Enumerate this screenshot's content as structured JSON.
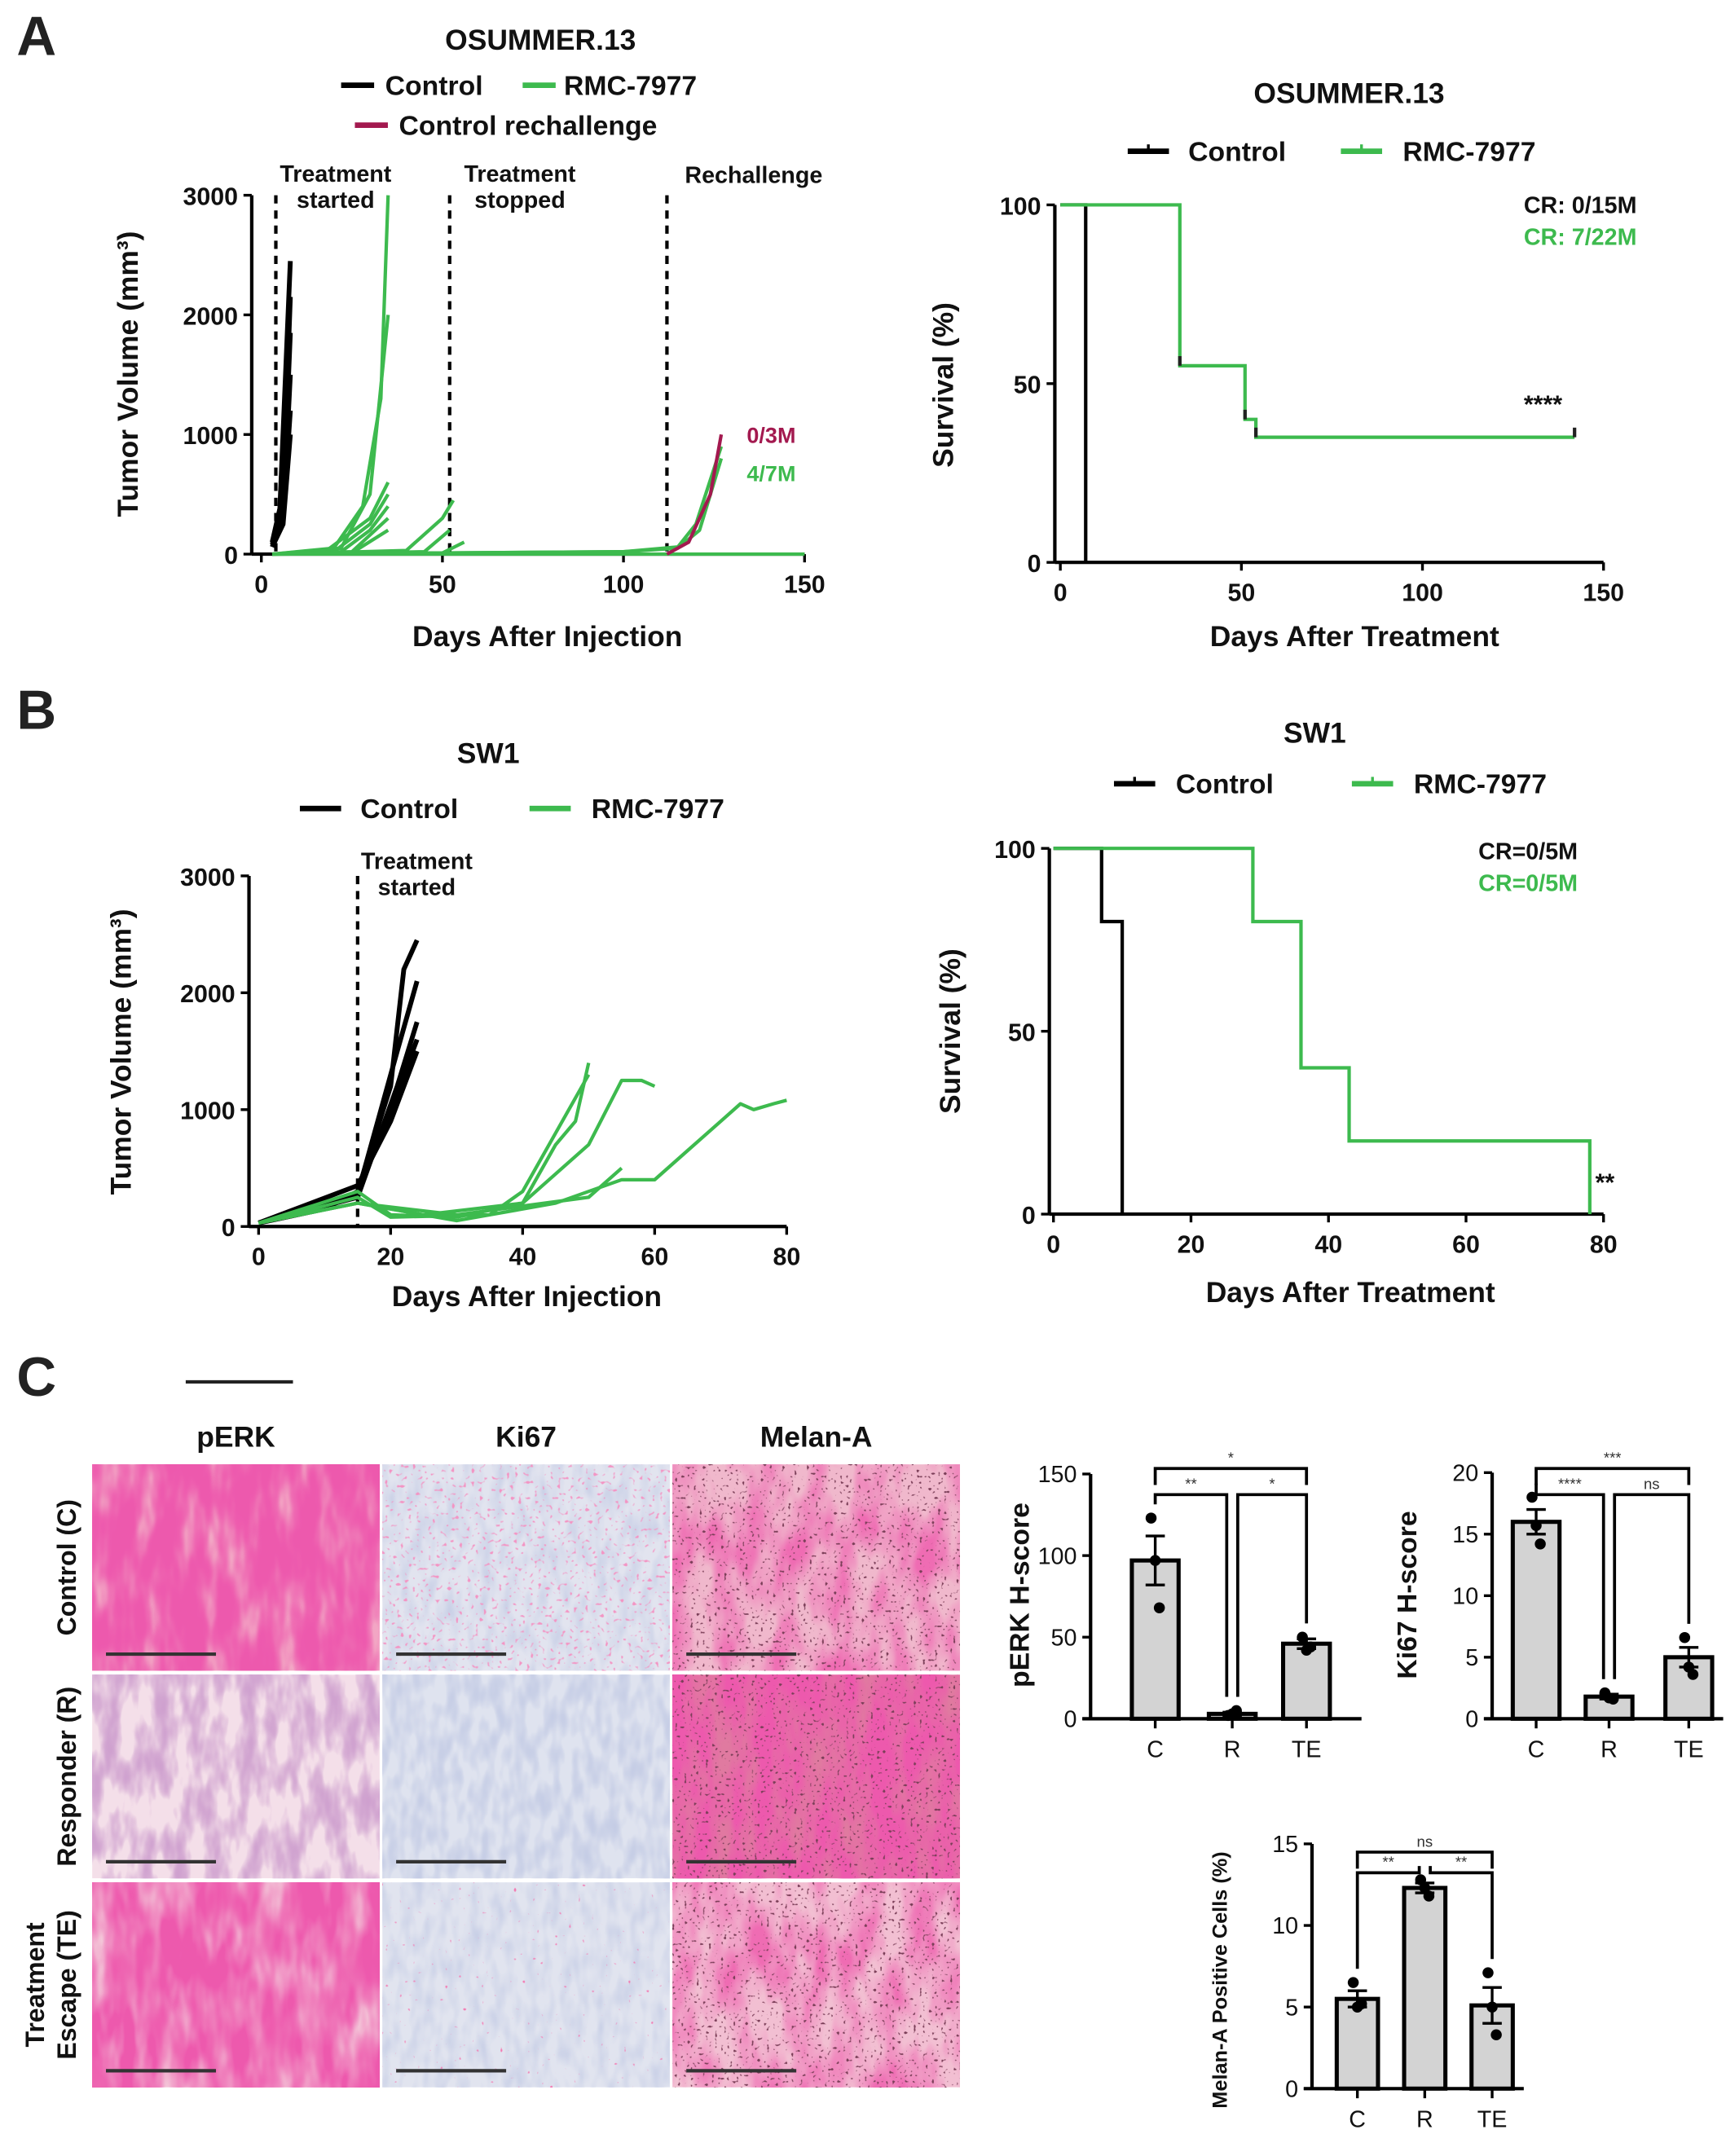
{
  "panels": {
    "a": "A",
    "b": "B",
    "c": "C"
  },
  "colors": {
    "control": "#000000",
    "treatment": "#3dba4e",
    "rechallenge": "#a3194f",
    "bar_fill": "#d3d3d3"
  },
  "panel_c": {
    "columns": [
      "pERK",
      "Ki67",
      "Melan-A"
    ],
    "rows": [
      [
        "Control (C)"
      ],
      [
        "Responder (R)"
      ],
      [
        "Treatment",
        "Escape (TE)"
      ]
    ]
  },
  "chart_data": [
    {
      "type": "line",
      "title": "OSUMMER.13",
      "xlabel": "Days After Injection",
      "ylabel": "Tumor Volume (mm³)",
      "xlim": [
        0,
        150
      ],
      "ylim": [
        0,
        3000
      ],
      "xticks": [
        0,
        50,
        100,
        150
      ],
      "yticks": [
        0,
        1000,
        2000,
        3000
      ],
      "grid": false,
      "legend": [
        {
          "name": "Control",
          "color": "#000000"
        },
        {
          "name": "RMC-7977",
          "color": "#3dba4e"
        },
        {
          "name": "Control rechallenge",
          "color": "#a3194f"
        }
      ],
      "vlines": [
        {
          "x": 4,
          "label": [
            "Treatment",
            "started"
          ]
        },
        {
          "x": 52,
          "label": [
            "Treatment",
            "stopped"
          ]
        },
        {
          "x": 112,
          "label": [
            "Rechallenge"
          ]
        }
      ],
      "annotations": [
        {
          "text": "0/3M",
          "color": "#a3194f"
        },
        {
          "text": "4/7M",
          "color": "#3dba4e"
        }
      ],
      "series": [
        {
          "group": 0,
          "points": [
            [
              3,
              100
            ],
            [
              5,
              300
            ],
            [
              8,
              2450
            ]
          ]
        },
        {
          "group": 0,
          "points": [
            [
              3,
              100
            ],
            [
              6,
              500
            ],
            [
              8,
              2150
            ]
          ]
        },
        {
          "group": 0,
          "points": [
            [
              3,
              80
            ],
            [
              6,
              400
            ],
            [
              8,
              1850
            ]
          ]
        },
        {
          "group": 0,
          "points": [
            [
              3,
              80
            ],
            [
              6,
              300
            ],
            [
              8,
              1500
            ]
          ]
        },
        {
          "group": 0,
          "points": [
            [
              3,
              60
            ],
            [
              6,
              300
            ],
            [
              8,
              1200
            ]
          ]
        },
        {
          "group": 0,
          "points": [
            [
              3,
              60
            ],
            [
              6,
              250
            ],
            [
              8,
              1000
            ]
          ]
        },
        {
          "group": 1,
          "points": [
            [
              3,
              0
            ],
            [
              20,
              50
            ],
            [
              28,
              400
            ],
            [
              33,
              1300
            ],
            [
              35,
              3000
            ]
          ]
        },
        {
          "group": 1,
          "points": [
            [
              3,
              0
            ],
            [
              22,
              50
            ],
            [
              30,
              500
            ],
            [
              35,
              2000
            ]
          ]
        },
        {
          "group": 1,
          "points": [
            [
              3,
              0
            ],
            [
              18,
              30
            ],
            [
              30,
              300
            ],
            [
              35,
              600
            ]
          ]
        },
        {
          "group": 1,
          "points": [
            [
              3,
              0
            ],
            [
              20,
              20
            ],
            [
              30,
              250
            ],
            [
              35,
              500
            ]
          ]
        },
        {
          "group": 1,
          "points": [
            [
              3,
              0
            ],
            [
              22,
              20
            ],
            [
              30,
              200
            ],
            [
              35,
              400
            ]
          ]
        },
        {
          "group": 1,
          "points": [
            [
              3,
              0
            ],
            [
              25,
              20
            ],
            [
              35,
              300
            ]
          ]
        },
        {
          "group": 1,
          "points": [
            [
              3,
              0
            ],
            [
              25,
              10
            ],
            [
              35,
              200
            ]
          ]
        },
        {
          "group": 1,
          "points": [
            [
              3,
              0
            ],
            [
              40,
              30
            ],
            [
              50,
              300
            ],
            [
              53,
              450
            ]
          ]
        },
        {
          "group": 1,
          "points": [
            [
              3,
              0
            ],
            [
              45,
              20
            ],
            [
              52,
              200
            ]
          ]
        },
        {
          "group": 1,
          "points": [
            [
              3,
              0
            ],
            [
              50,
              10
            ],
            [
              56,
              100
            ]
          ]
        },
        {
          "group": 1,
          "points": [
            [
              3,
              0
            ],
            [
              100,
              20
            ],
            [
              115,
              60
            ],
            [
              120,
              250
            ],
            [
              127,
              900
            ]
          ]
        },
        {
          "group": 1,
          "points": [
            [
              3,
              0
            ],
            [
              100,
              20
            ],
            [
              115,
              50
            ],
            [
              121,
              200
            ],
            [
              127,
              800
            ]
          ]
        },
        {
          "group": 1,
          "points": [
            [
              3,
              0
            ],
            [
              150,
              0
            ]
          ]
        },
        {
          "group": 2,
          "points": [
            [
              112,
              0
            ],
            [
              118,
              100
            ],
            [
              124,
              500
            ],
            [
              127,
              1000
            ]
          ]
        }
      ]
    },
    {
      "type": "line",
      "title": "OSUMMER.13",
      "xlabel": "Days After Treatment",
      "ylabel": "Survival (%)",
      "xlim": [
        0,
        150
      ],
      "ylim": [
        0,
        100
      ],
      "xticks": [
        0,
        50,
        100,
        150
      ],
      "yticks": [
        0,
        50,
        100
      ],
      "grid": false,
      "legend": [
        {
          "name": "Control",
          "color": "#000000"
        },
        {
          "name": "RMC-7977",
          "color": "#3dba4e"
        }
      ],
      "annotations": [
        {
          "text": "CR: 0/15M",
          "color": "#111111"
        },
        {
          "text": "CR: 7/22M",
          "color": "#3dba4e"
        },
        {
          "text": "****",
          "color": "#111111"
        }
      ],
      "series": [
        {
          "group": 0,
          "steps": [
            [
              0,
              100
            ],
            [
              7,
              0
            ]
          ],
          "censored": []
        },
        {
          "group": 1,
          "steps": [
            [
              0,
              100
            ],
            [
              33,
              55
            ],
            [
              51,
              40
            ],
            [
              54,
              35
            ],
            [
              142,
              35
            ]
          ],
          "censored": [
            [
              33,
              55
            ],
            [
              51,
              40
            ],
            [
              54,
              35
            ],
            [
              142,
              35
            ]
          ]
        }
      ]
    },
    {
      "type": "line",
      "title": "SW1",
      "xlabel": "Days After Injection",
      "ylabel": "Tumor Volume (mm³)",
      "xlim": [
        0,
        80
      ],
      "ylim": [
        0,
        3000
      ],
      "xticks": [
        0,
        20,
        40,
        60,
        80
      ],
      "yticks": [
        0,
        1000,
        2000,
        3000
      ],
      "grid": false,
      "legend": [
        {
          "name": "Control",
          "color": "#000000"
        },
        {
          "name": "RMC-7977",
          "color": "#3dba4e"
        }
      ],
      "vlines": [
        {
          "x": 15,
          "label": [
            "Treatment",
            "started"
          ]
        }
      ],
      "series": [
        {
          "group": 0,
          "points": [
            [
              0,
              30
            ],
            [
              10,
              150
            ],
            [
              15,
              300
            ],
            [
              20,
              1200
            ],
            [
              22,
              2200
            ],
            [
              24,
              2450
            ]
          ]
        },
        {
          "group": 0,
          "points": [
            [
              0,
              30
            ],
            [
              15,
              280
            ],
            [
              21,
              1500
            ],
            [
              24,
              2100
            ]
          ]
        },
        {
          "group": 0,
          "points": [
            [
              0,
              30
            ],
            [
              15,
              250
            ],
            [
              21,
              1200
            ],
            [
              24,
              1750
            ]
          ]
        },
        {
          "group": 0,
          "points": [
            [
              0,
              30
            ],
            [
              15,
              280
            ],
            [
              20,
              1000
            ],
            [
              24,
              1600
            ]
          ]
        },
        {
          "group": 0,
          "points": [
            [
              0,
              30
            ],
            [
              15,
              350
            ],
            [
              20,
              900
            ],
            [
              24,
              1500
            ]
          ]
        },
        {
          "group": 1,
          "points": [
            [
              0,
              30
            ],
            [
              15,
              300
            ],
            [
              20,
              100
            ],
            [
              30,
              80
            ],
            [
              40,
              200
            ],
            [
              45,
              700
            ],
            [
              48,
              900
            ],
            [
              50,
              1400
            ]
          ]
        },
        {
          "group": 1,
          "points": [
            [
              0,
              30
            ],
            [
              15,
              250
            ],
            [
              20,
              80
            ],
            [
              35,
              100
            ],
            [
              40,
              300
            ],
            [
              45,
              800
            ],
            [
              50,
              1300
            ]
          ]
        },
        {
          "group": 1,
          "points": [
            [
              0,
              30
            ],
            [
              15,
              200
            ],
            [
              25,
              100
            ],
            [
              40,
              200
            ],
            [
              50,
              700
            ],
            [
              55,
              1250
            ],
            [
              58,
              1250
            ],
            [
              60,
              1200
            ]
          ]
        },
        {
          "group": 1,
          "points": [
            [
              0,
              30
            ],
            [
              15,
              200
            ],
            [
              30,
              50
            ],
            [
              45,
              200
            ],
            [
              55,
              400
            ],
            [
              60,
              400
            ],
            [
              65,
              650
            ],
            [
              70,
              900
            ],
            [
              73,
              1050
            ],
            [
              75,
              1000
            ],
            [
              78,
              1050
            ],
            [
              80,
              1080
            ]
          ]
        },
        {
          "group": 1,
          "points": [
            [
              0,
              30
            ],
            [
              15,
              200
            ],
            [
              30,
              100
            ],
            [
              50,
              250
            ],
            [
              55,
              500
            ]
          ]
        }
      ]
    },
    {
      "type": "line",
      "title": "SW1",
      "xlabel": "Days After Treatment",
      "ylabel": "Survival (%)",
      "xlim": [
        0,
        80
      ],
      "ylim": [
        0,
        100
      ],
      "xticks": [
        0,
        20,
        40,
        60,
        80
      ],
      "yticks": [
        0,
        50,
        100
      ],
      "grid": false,
      "legend": [
        {
          "name": "Control",
          "color": "#000000"
        },
        {
          "name": "RMC-7977",
          "color": "#3dba4e"
        }
      ],
      "annotations": [
        {
          "text": "CR=0/5M",
          "color": "#111111"
        },
        {
          "text": "CR=0/5M",
          "color": "#3dba4e"
        },
        {
          "text": "**",
          "color": "#111111"
        }
      ],
      "series": [
        {
          "group": 0,
          "steps": [
            [
              0,
              100
            ],
            [
              7,
              80
            ],
            [
              10,
              0
            ]
          ],
          "censored": []
        },
        {
          "group": 1,
          "steps": [
            [
              0,
              100
            ],
            [
              29,
              80
            ],
            [
              36,
              40
            ],
            [
              43,
              20
            ],
            [
              78,
              0
            ]
          ],
          "censored": []
        }
      ]
    },
    {
      "type": "bar",
      "title": "",
      "ylabel": "pERK H-score",
      "categories": [
        "C",
        "R",
        "TE"
      ],
      "ylim": [
        0,
        150
      ],
      "yticks": [
        0,
        50,
        100,
        150
      ],
      "values": [
        97,
        3,
        46
      ],
      "sem": [
        15,
        1,
        3
      ],
      "points": [
        [
          123,
          97,
          68
        ],
        [
          2,
          3,
          5
        ],
        [
          50,
          42,
          44
        ]
      ],
      "significance": [
        {
          "pair": [
            0,
            1
          ],
          "label": "**",
          "level": 0
        },
        {
          "pair": [
            1,
            2
          ],
          "label": "*",
          "level": 0
        },
        {
          "pair": [
            0,
            2
          ],
          "label": "*",
          "level": 1
        }
      ]
    },
    {
      "type": "bar",
      "title": "",
      "ylabel": "Ki67 H-score",
      "categories": [
        "C",
        "R",
        "TE"
      ],
      "ylim": [
        0,
        20
      ],
      "yticks": [
        0,
        5,
        10,
        15,
        20
      ],
      "values": [
        16,
        1.8,
        5
      ],
      "sem": [
        1,
        0.2,
        0.8
      ],
      "points": [
        [
          18,
          15.7,
          14.2
        ],
        [
          2.1,
          1.7,
          1.6
        ],
        [
          6.6,
          4.2,
          3.6
        ]
      ],
      "significance": [
        {
          "pair": [
            0,
            1
          ],
          "label": "****",
          "level": 0
        },
        {
          "pair": [
            1,
            2
          ],
          "label": "ns",
          "level": 0
        },
        {
          "pair": [
            0,
            2
          ],
          "label": "***",
          "level": 1
        }
      ]
    },
    {
      "type": "bar",
      "title": "",
      "ylabel": "Melan-A Positive Cells (%)",
      "categories": [
        "C",
        "R",
        "TE"
      ],
      "ylim": [
        0,
        15
      ],
      "yticks": [
        0,
        5,
        10,
        15
      ],
      "values": [
        5.5,
        12.3,
        5.1
      ],
      "sem": [
        0.5,
        0.3,
        1.1
      ],
      "points": [
        [
          6.5,
          5,
          5.2
        ],
        [
          12.8,
          12.3,
          11.8
        ],
        [
          7.1,
          5,
          3.3
        ]
      ],
      "significance": [
        {
          "pair": [
            0,
            1
          ],
          "label": "**",
          "level": 0
        },
        {
          "pair": [
            1,
            2
          ],
          "label": "**",
          "level": 0
        },
        {
          "pair": [
            0,
            2
          ],
          "label": "ns",
          "level": 1
        }
      ]
    }
  ]
}
